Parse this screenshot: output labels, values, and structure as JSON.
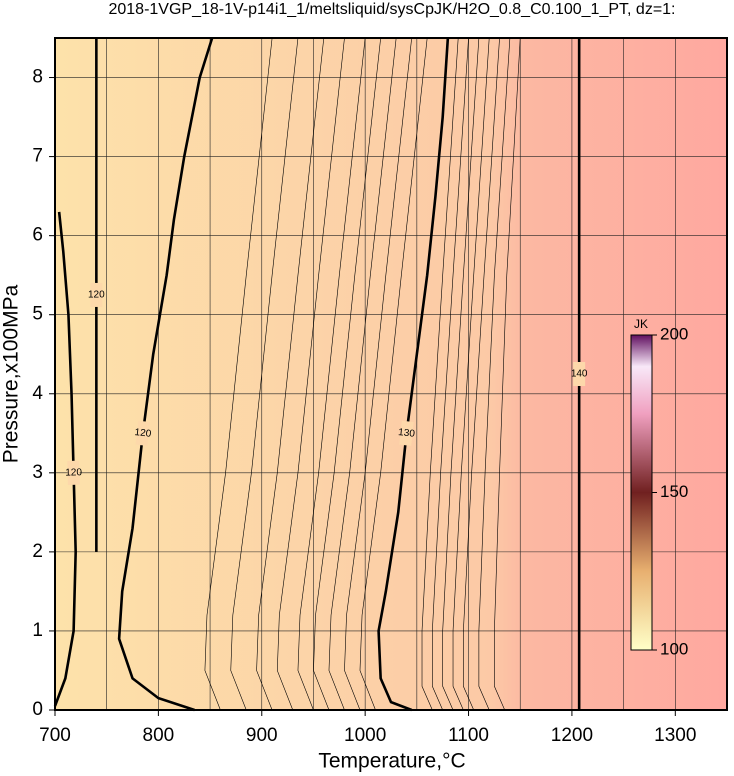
{
  "chart_data": {
    "type": "contour",
    "title": "2018-1VGP_18-1V-p14i1_1/meltsliquid/sysCpJK/H2O_0.8_C0.100_1_PT, dz=1:",
    "xlabel": "Temperature,°C",
    "ylabel": "Pressure,x100MPa",
    "xlim": [
      700,
      1350
    ],
    "ylim": [
      0,
      8.5
    ],
    "xticks": [
      700,
      800,
      900,
      1000,
      1100,
      1200,
      1300
    ],
    "yticks": [
      0,
      1,
      2,
      3,
      4,
      5,
      6,
      7,
      8
    ],
    "xgrid": [
      750,
      850,
      950,
      1050,
      1150,
      1250
    ],
    "grid": true,
    "contours": [
      {
        "level": 120,
        "x": [
          700,
          710,
          718,
          720,
          718,
          716,
          713,
          708,
          704
        ],
        "y": [
          0.05,
          0.4,
          1,
          2,
          3,
          4,
          5,
          5.8,
          6.3
        ]
      },
      {
        "level": 120,
        "x": [
          740,
          740
        ],
        "y": [
          2,
          8.5
        ]
      },
      {
        "level": 120,
        "x": [
          835,
          800,
          775,
          762,
          765,
          775,
          785,
          795,
          808,
          815,
          825,
          840,
          852
        ],
        "y": [
          0,
          0.15,
          0.4,
          0.9,
          1.5,
          2.3,
          3.5,
          4.5,
          5.5,
          6.2,
          7,
          8,
          8.5
        ]
      },
      {
        "level": 130,
        "x": [
          1045,
          1025,
          1015,
          1013,
          1020,
          1032,
          1040,
          1050,
          1060,
          1068,
          1075,
          1080
        ],
        "y": [
          0,
          0.1,
          0.4,
          1,
          1.5,
          2.5,
          3.5,
          4.5,
          5.5,
          6.5,
          7.5,
          8.5
        ]
      },
      {
        "level": 140,
        "x": [
          1207,
          1207
        ],
        "y": [
          0,
          8.5
        ]
      }
    ],
    "minor_contours": [
      {
        "level": 121,
        "x": [
          860,
          845,
          847,
          865,
          885,
          910
        ],
        "y": [
          0,
          0.5,
          1.2,
          3,
          5.5,
          8.5
        ]
      },
      {
        "level": 122,
        "x": [
          885,
          870,
          872,
          890,
          910,
          935
        ],
        "y": [
          0,
          0.5,
          1.2,
          3,
          5.5,
          8.5
        ]
      },
      {
        "level": 123,
        "x": [
          910,
          895,
          897,
          915,
          935,
          960
        ],
        "y": [
          0,
          0.5,
          1.2,
          3,
          5.5,
          8.5
        ]
      },
      {
        "level": 124,
        "x": [
          930,
          915,
          917,
          935,
          955,
          980
        ],
        "y": [
          0,
          0.5,
          1.2,
          3,
          5.5,
          8.5
        ]
      },
      {
        "level": 125,
        "x": [
          950,
          935,
          937,
          955,
          975,
          1000
        ],
        "y": [
          0,
          0.5,
          1.2,
          3,
          5.5,
          8.5
        ]
      },
      {
        "level": 126,
        "x": [
          965,
          950,
          952,
          970,
          990,
          1015
        ],
        "y": [
          0,
          0.5,
          1.2,
          3,
          5.5,
          8.5
        ]
      },
      {
        "level": 127,
        "x": [
          980,
          965,
          967,
          985,
          1005,
          1030
        ],
        "y": [
          0,
          0.5,
          1.2,
          3,
          5.5,
          8.5
        ]
      },
      {
        "level": 128,
        "x": [
          995,
          980,
          982,
          1000,
          1020,
          1045
        ],
        "y": [
          0,
          0.5,
          1.2,
          3,
          5.5,
          8.5
        ]
      },
      {
        "level": 129,
        "x": [
          1010,
          995,
          997,
          1015,
          1035,
          1060
        ],
        "y": [
          0,
          0.5,
          1.2,
          3,
          5.5,
          8.5
        ]
      },
      {
        "level": 131,
        "x": [
          1065,
          1055,
          1055,
          1063,
          1075,
          1090
        ],
        "y": [
          0,
          0.3,
          1,
          3,
          5.5,
          8.5
        ]
      },
      {
        "level": 132,
        "x": [
          1075,
          1065,
          1065,
          1073,
          1085,
          1100
        ],
        "y": [
          0,
          0.3,
          1,
          3,
          5.5,
          8.5
        ]
      },
      {
        "level": 133,
        "x": [
          1085,
          1075,
          1075,
          1083,
          1095,
          1110
        ],
        "y": [
          0,
          0.3,
          1,
          3,
          5.5,
          8.5
        ]
      },
      {
        "level": 134,
        "x": [
          1095,
          1085,
          1085,
          1093,
          1105,
          1120
        ],
        "y": [
          0,
          0.3,
          1,
          3,
          5.5,
          8.5
        ]
      },
      {
        "level": 135,
        "x": [
          1105,
          1095,
          1095,
          1103,
          1115,
          1130
        ],
        "y": [
          0,
          0.3,
          1,
          3,
          5.5,
          8.5
        ]
      },
      {
        "level": 136,
        "x": [
          1120,
          1110,
          1110,
          1116,
          1125,
          1140
        ],
        "y": [
          0,
          0.3,
          1,
          3,
          5.5,
          8.5
        ]
      },
      {
        "level": 137,
        "x": [
          1135,
          1125,
          1125,
          1130,
          1137,
          1150
        ],
        "y": [
          0,
          0.3,
          1,
          3,
          5.5,
          8.5
        ]
      }
    ],
    "colorbar": {
      "label": "JK",
      "lim": [
        100,
        200
      ],
      "ticks": [
        100,
        150,
        200
      ]
    }
  }
}
